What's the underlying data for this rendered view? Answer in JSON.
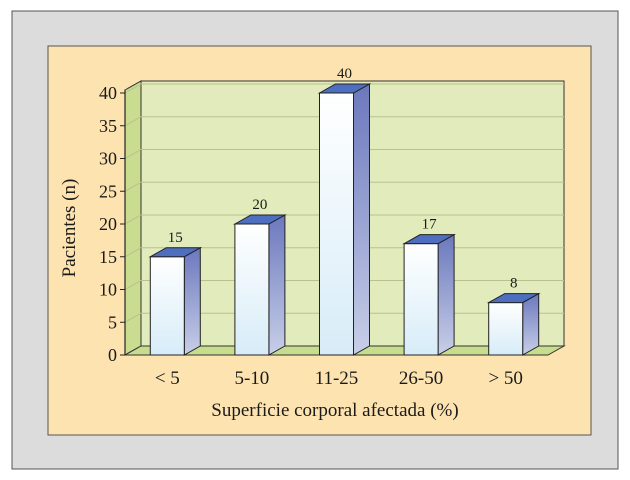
{
  "chart_data": {
    "type": "bar",
    "categories": [
      "< 5",
      "5-10",
      "11-25",
      "26-50",
      "> 50"
    ],
    "values": [
      15,
      20,
      40,
      17,
      8
    ],
    "data_labels": [
      "15",
      "20",
      "40",
      "17",
      "8"
    ],
    "title": "",
    "xlabel": "Superficie corporal afectada (%)",
    "ylabel": "Pacientes (n)",
    "ylim": [
      0,
      40
    ],
    "yticks": [
      0,
      5,
      10,
      15,
      20,
      25,
      30,
      35,
      40
    ],
    "grid": true,
    "legend": "none",
    "style": "3d-bar",
    "colors": {
      "outer_frame": "#dcdcdc",
      "panel": "#fde3b0",
      "plot_wall": "#e2ebbc",
      "side_wall": "#c9dc90",
      "floor": "#c7dc8c",
      "bar_front_top": "#ffffff",
      "bar_front_bottom": "#d7ecf8",
      "bar_side": "#6b78bd",
      "bar_top": "#4e6fc0"
    }
  }
}
